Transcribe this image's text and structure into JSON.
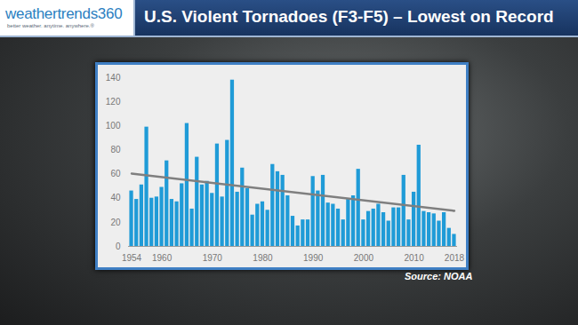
{
  "chart_data": {
    "type": "bar",
    "title": "U.S. Violent Tornadoes (F3-F5) – Lowest on Record",
    "logo": "weathertrends360",
    "tagline": "better weather. anytime. anywhere.®",
    "source": "Source: NOAA",
    "categories": [
      "1954",
      null,
      null,
      null,
      null,
      null,
      "1960",
      null,
      null,
      null,
      null,
      null,
      null,
      null,
      null,
      null,
      "1970",
      null,
      null,
      null,
      null,
      null,
      null,
      null,
      null,
      null,
      "1980",
      null,
      null,
      null,
      null,
      null,
      null,
      null,
      null,
      null,
      "1990",
      null,
      null,
      null,
      null,
      null,
      null,
      null,
      null,
      null,
      "2000",
      null,
      null,
      null,
      null,
      null,
      null,
      null,
      null,
      null,
      "2010",
      null,
      null,
      null,
      null,
      null,
      null,
      null,
      "2018"
    ],
    "values": [
      46,
      39,
      51,
      99,
      40,
      41,
      49,
      71,
      39,
      37,
      52,
      102,
      31,
      74,
      51,
      54,
      44,
      85,
      41,
      88,
      138,
      45,
      65,
      48,
      26,
      35,
      37,
      30,
      68,
      62,
      59,
      42,
      25,
      17,
      22,
      22,
      58,
      46,
      59,
      36,
      35,
      31,
      22,
      39,
      42,
      64,
      22,
      29,
      31,
      35,
      28,
      21,
      32,
      32,
      59,
      22,
      45,
      84,
      29,
      28,
      27,
      21,
      28,
      15,
      10
    ],
    "trend": [
      60.5,
      29.5
    ],
    "color": "#1f9bd7",
    "ylim": [
      0,
      140
    ],
    "yticks": [
      0,
      20,
      40,
      60,
      80,
      100,
      120,
      140
    ],
    "grid": false
  }
}
